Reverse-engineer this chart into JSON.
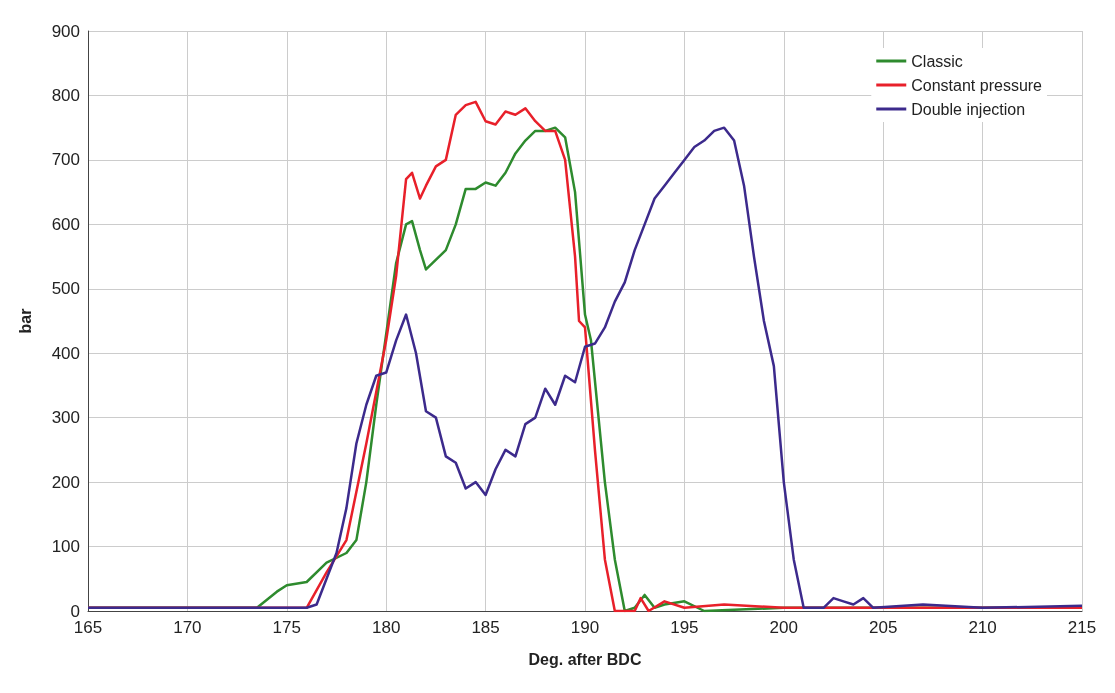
{
  "chart_data": {
    "type": "line",
    "xlabel": "Deg. after BDC",
    "ylabel": "bar",
    "xlim": [
      165,
      215
    ],
    "xticks": [
      165,
      170,
      175,
      180,
      185,
      190,
      195,
      200,
      205,
      210,
      215
    ],
    "ylim": [
      0,
      900
    ],
    "yticks": [
      0,
      100,
      200,
      300,
      400,
      500,
      600,
      700,
      800,
      900
    ],
    "grid": true,
    "legend": "top right",
    "marker": "none",
    "line_style": "solid",
    "series": [
      {
        "name": "Classic",
        "color": "#2e8b2e",
        "x": [
          165,
          173.5,
          174.5,
          175,
          176,
          177,
          178,
          178.5,
          179,
          179.5,
          180,
          180.5,
          181,
          181.3,
          181.7,
          182,
          183,
          183.5,
          184,
          184.5,
          185,
          185.5,
          186,
          186.5,
          187,
          187.5,
          188,
          188.5,
          189,
          189.5,
          190,
          190.3,
          191,
          191.5,
          192,
          192.5,
          193,
          193.5,
          194,
          195,
          196,
          200,
          215
        ],
        "values": [
          5,
          5,
          30,
          40,
          45,
          75,
          90,
          110,
          200,
          320,
          430,
          540,
          600,
          605,
          560,
          530,
          560,
          600,
          655,
          655,
          665,
          660,
          680,
          710,
          730,
          745,
          745,
          750,
          735,
          650,
          460,
          420,
          200,
          80,
          0,
          5,
          25,
          5,
          10,
          15,
          0,
          5,
          5
        ]
      },
      {
        "name": "Constant pressure",
        "color": "#e8202a",
        "x": [
          165,
          176,
          177,
          178,
          179,
          180,
          180.5,
          181,
          181.3,
          181.7,
          182,
          182.5,
          183,
          183.5,
          184,
          184.5,
          185,
          185.5,
          186,
          186.5,
          187,
          187.5,
          188,
          188.5,
          189,
          189.5,
          189.7,
          190,
          190.5,
          191,
          191.5,
          192.5,
          192.8,
          193.2,
          194,
          195,
          197,
          200,
          215
        ],
        "values": [
          5,
          5,
          60,
          110,
          260,
          420,
          520,
          670,
          680,
          640,
          660,
          690,
          700,
          770,
          785,
          790,
          760,
          755,
          775,
          770,
          780,
          760,
          745,
          745,
          700,
          550,
          450,
          440,
          250,
          80,
          0,
          0,
          20,
          0,
          15,
          5,
          10,
          5,
          5
        ]
      },
      {
        "name": "Double injection",
        "color": "#3c2a8c",
        "x": [
          165,
          176,
          176.5,
          177,
          177.5,
          178,
          178.5,
          179,
          179.5,
          180,
          180.5,
          181,
          181.5,
          182,
          182.5,
          183,
          183.5,
          184,
          184.5,
          185,
          185.5,
          186,
          186.5,
          187,
          187.5,
          188,
          188.5,
          189,
          189.5,
          190,
          190.5,
          191,
          191.5,
          192,
          192.5,
          193,
          193.5,
          194,
          194.5,
          195,
          195.5,
          196,
          196.5,
          197,
          197.5,
          198,
          198.5,
          199,
          199.5,
          200,
          200.5,
          201,
          202,
          202.5,
          203,
          203.5,
          204,
          204.5,
          207,
          210,
          215
        ],
        "values": [
          5,
          5,
          10,
          50,
          90,
          160,
          260,
          320,
          365,
          370,
          420,
          460,
          400,
          310,
          300,
          240,
          230,
          190,
          200,
          180,
          220,
          250,
          240,
          290,
          300,
          345,
          320,
          365,
          355,
          410,
          415,
          440,
          480,
          510,
          560,
          600,
          640,
          660,
          680,
          700,
          720,
          730,
          745,
          750,
          730,
          660,
          550,
          450,
          380,
          200,
          80,
          5,
          5,
          20,
          15,
          10,
          20,
          5,
          10,
          5,
          8
        ]
      }
    ]
  }
}
